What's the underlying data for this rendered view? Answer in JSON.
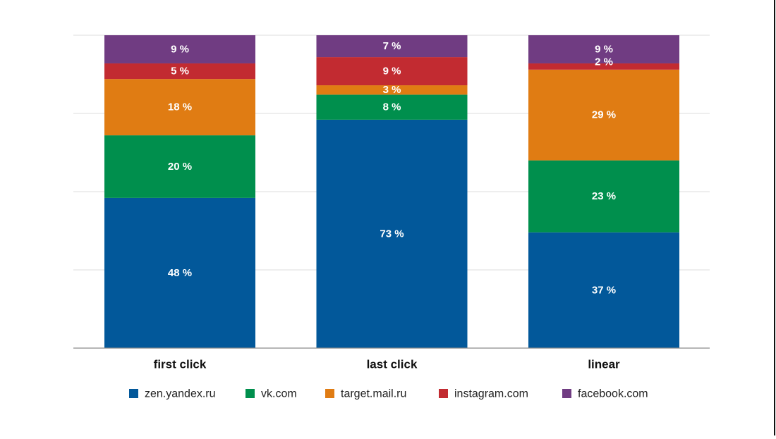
{
  "chart_data": {
    "type": "bar",
    "stacked": true,
    "categories": [
      "first click",
      "last click",
      "linear"
    ],
    "series": [
      {
        "name": "zen.yandex.ru",
        "color": "#02589a",
        "values": [
          48,
          73,
          37
        ],
        "labels": [
          "48 %",
          "73 %",
          "37 %"
        ]
      },
      {
        "name": "vk.com",
        "color": "#008f4d",
        "values": [
          20,
          8,
          23
        ],
        "labels": [
          "20 %",
          "8 %",
          "23 %"
        ]
      },
      {
        "name": "target.mail.ru",
        "color": "#e07c13",
        "values": [
          18,
          3,
          29
        ],
        "labels": [
          "18 %",
          "3 %",
          "29 %"
        ]
      },
      {
        "name": "instagram.com",
        "color": "#c22b31",
        "values": [
          5,
          9,
          2
        ],
        "labels": [
          "5 %",
          "9 %",
          "2 %"
        ]
      },
      {
        "name": "facebook.com",
        "color": "#703c82",
        "values": [
          9,
          7,
          9
        ],
        "labels": [
          "9 %",
          "7 %",
          "9 %"
        ]
      }
    ],
    "ylim": [
      0,
      100
    ],
    "grid": true,
    "legend_position": "bottom"
  }
}
